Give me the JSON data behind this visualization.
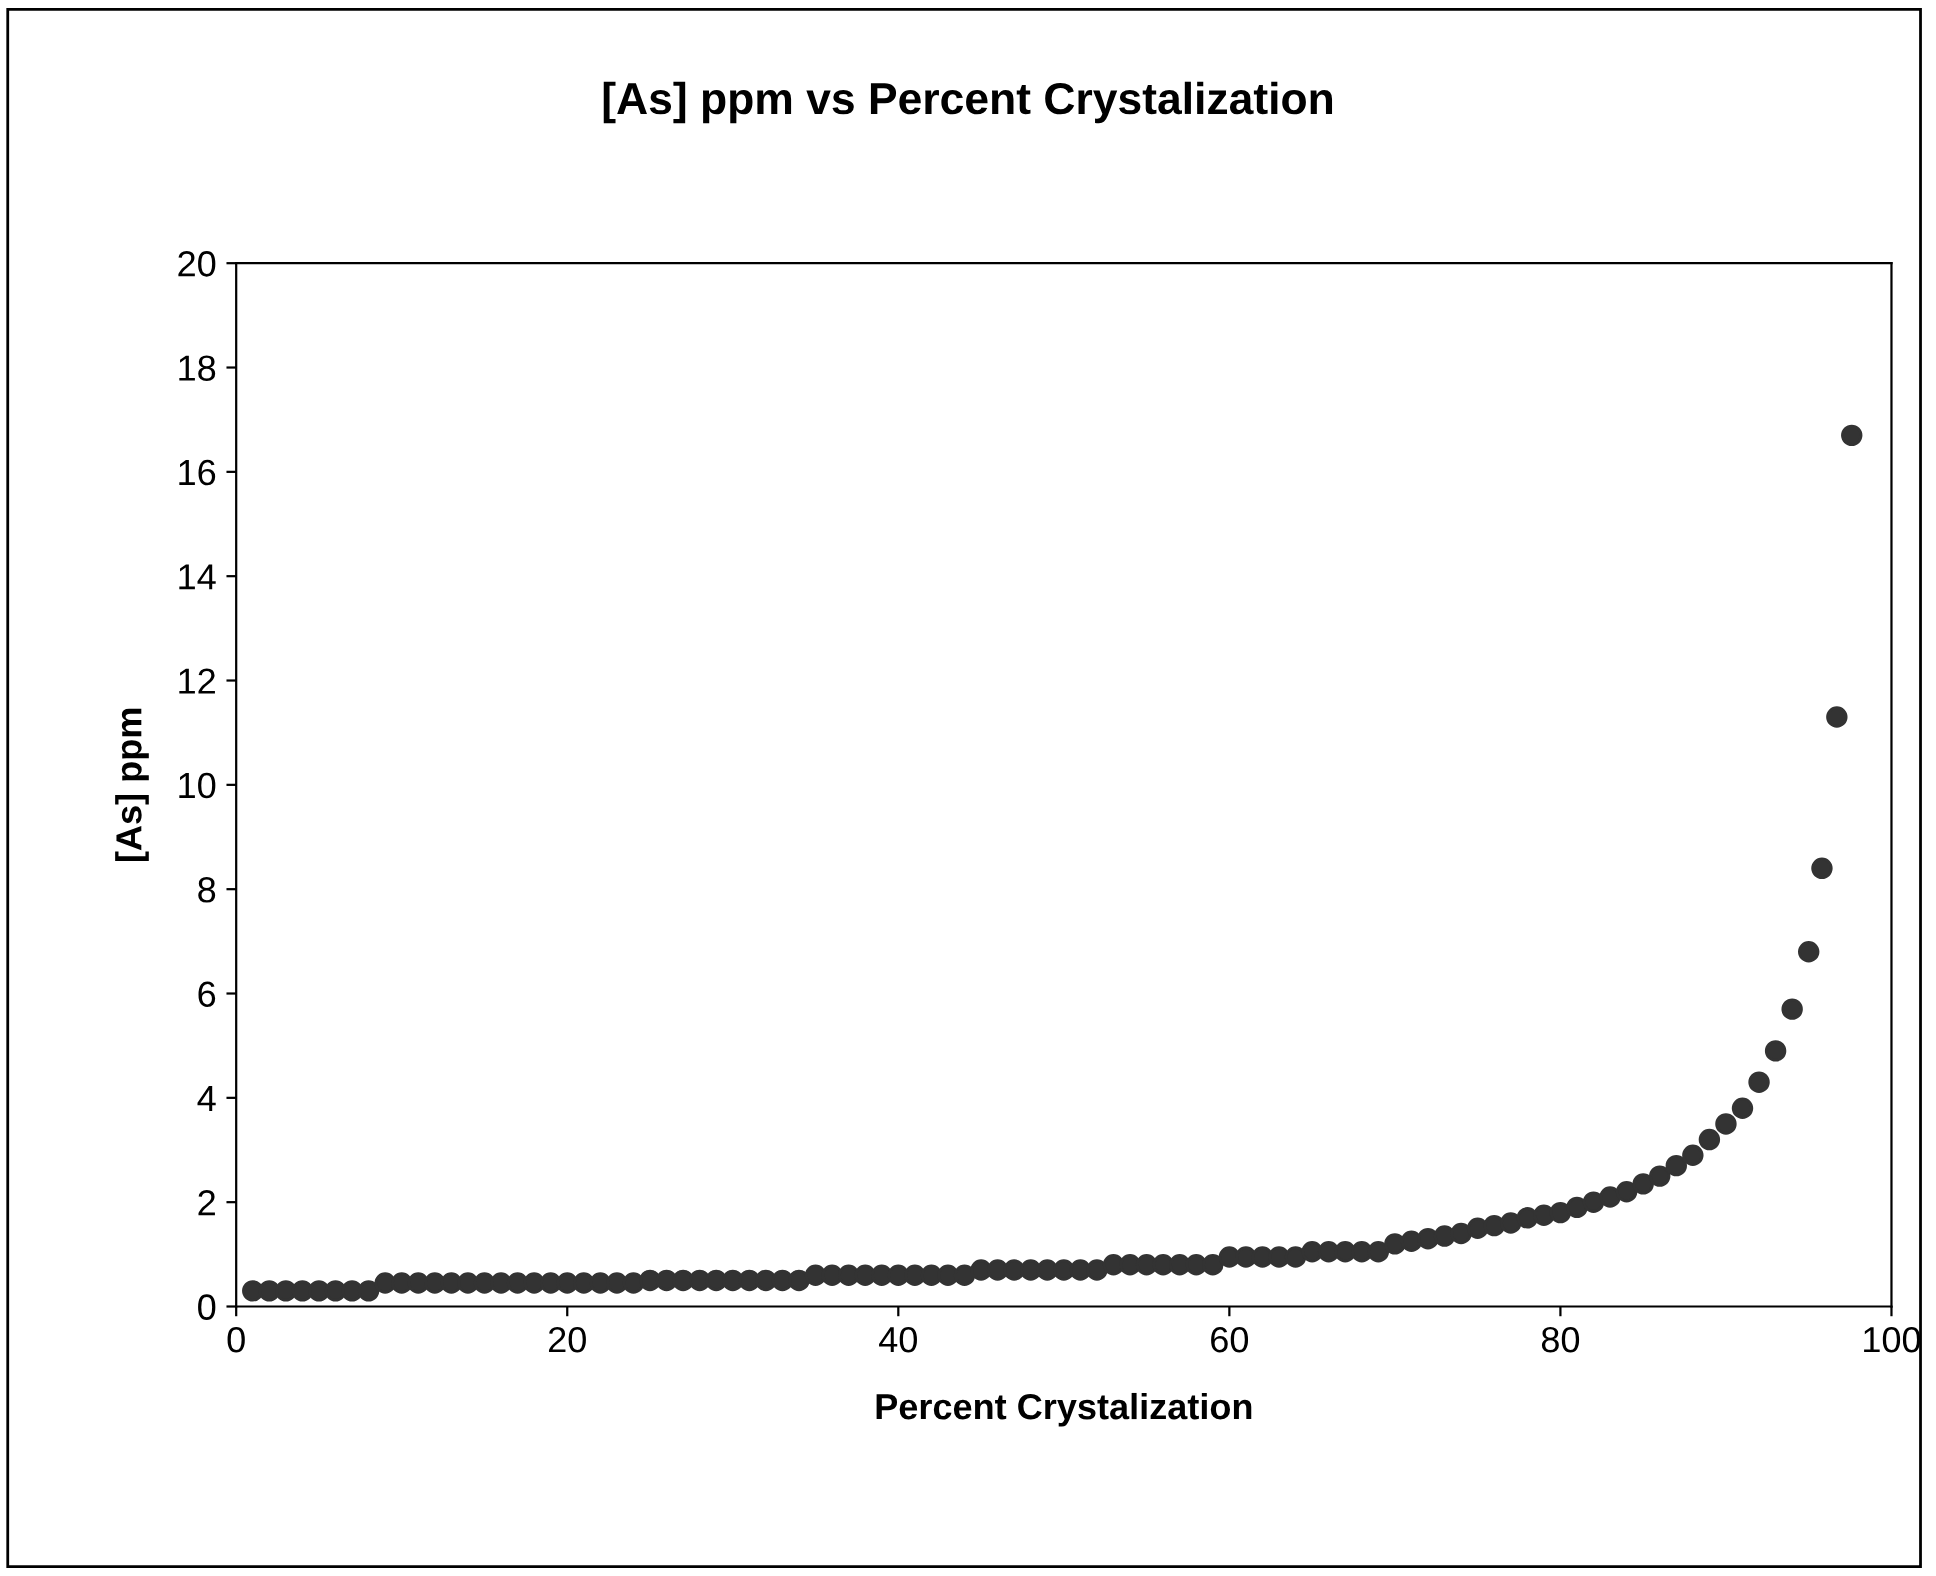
{
  "chart_data": {
    "type": "scatter",
    "title": "[As] ppm vs Percent Crystalization",
    "xlabel": "Percent Crystalization",
    "ylabel": "[As] ppm",
    "x": [
      1,
      2,
      3,
      4,
      5,
      6,
      7,
      8,
      9,
      10,
      11,
      12,
      13,
      14,
      15,
      16,
      17,
      18,
      19,
      20,
      21,
      22,
      23,
      24,
      25,
      26,
      27,
      28,
      29,
      30,
      31,
      32,
      33,
      34,
      35,
      36,
      37,
      38,
      39,
      40,
      41,
      42,
      43,
      44,
      45,
      46,
      47,
      48,
      49,
      50,
      51,
      52,
      53,
      54,
      55,
      56,
      57,
      58,
      59,
      60,
      61,
      62,
      63,
      64,
      65,
      66,
      67,
      68,
      69,
      70,
      71,
      72,
      73,
      74,
      75,
      76,
      77,
      78,
      79,
      80,
      81,
      82,
      83,
      84,
      85,
      86,
      87,
      88,
      89,
      90,
      91,
      92,
      93,
      94,
      95,
      95.8,
      96.7,
      97.6
    ],
    "series": [
      {
        "color": "#333333",
        "values": [
          0.3,
          0.3,
          0.3,
          0.3,
          0.3,
          0.3,
          0.3,
          0.3,
          0.45,
          0.45,
          0.45,
          0.45,
          0.45,
          0.45,
          0.45,
          0.45,
          0.45,
          0.45,
          0.45,
          0.45,
          0.45,
          0.45,
          0.45,
          0.45,
          0.5,
          0.5,
          0.5,
          0.5,
          0.5,
          0.5,
          0.5,
          0.5,
          0.5,
          0.5,
          0.6,
          0.6,
          0.6,
          0.6,
          0.6,
          0.6,
          0.6,
          0.6,
          0.6,
          0.6,
          0.7,
          0.7,
          0.7,
          0.7,
          0.7,
          0.7,
          0.7,
          0.7,
          0.8,
          0.8,
          0.8,
          0.8,
          0.8,
          0.8,
          0.8,
          0.95,
          0.95,
          0.95,
          0.95,
          0.95,
          1.05,
          1.05,
          1.05,
          1.05,
          1.05,
          1.2,
          1.25,
          1.3,
          1.35,
          1.4,
          1.5,
          1.55,
          1.6,
          1.7,
          1.75,
          1.8,
          1.9,
          2.0,
          2.1,
          2.2,
          2.35,
          2.5,
          2.7,
          2.9,
          3.2,
          3.5,
          3.8,
          4.3,
          4.9,
          5.7,
          6.8,
          8.4,
          11.3,
          16.7
        ]
      }
    ],
    "xlim": [
      0,
      100
    ],
    "ylim": [
      0,
      20
    ],
    "xticks": [
      0,
      20,
      40,
      60,
      80,
      100
    ],
    "yticks": [
      0,
      2,
      4,
      6,
      8,
      10,
      12,
      14,
      16,
      18,
      20
    ],
    "grid": false,
    "legend": false,
    "marker": "circle"
  }
}
